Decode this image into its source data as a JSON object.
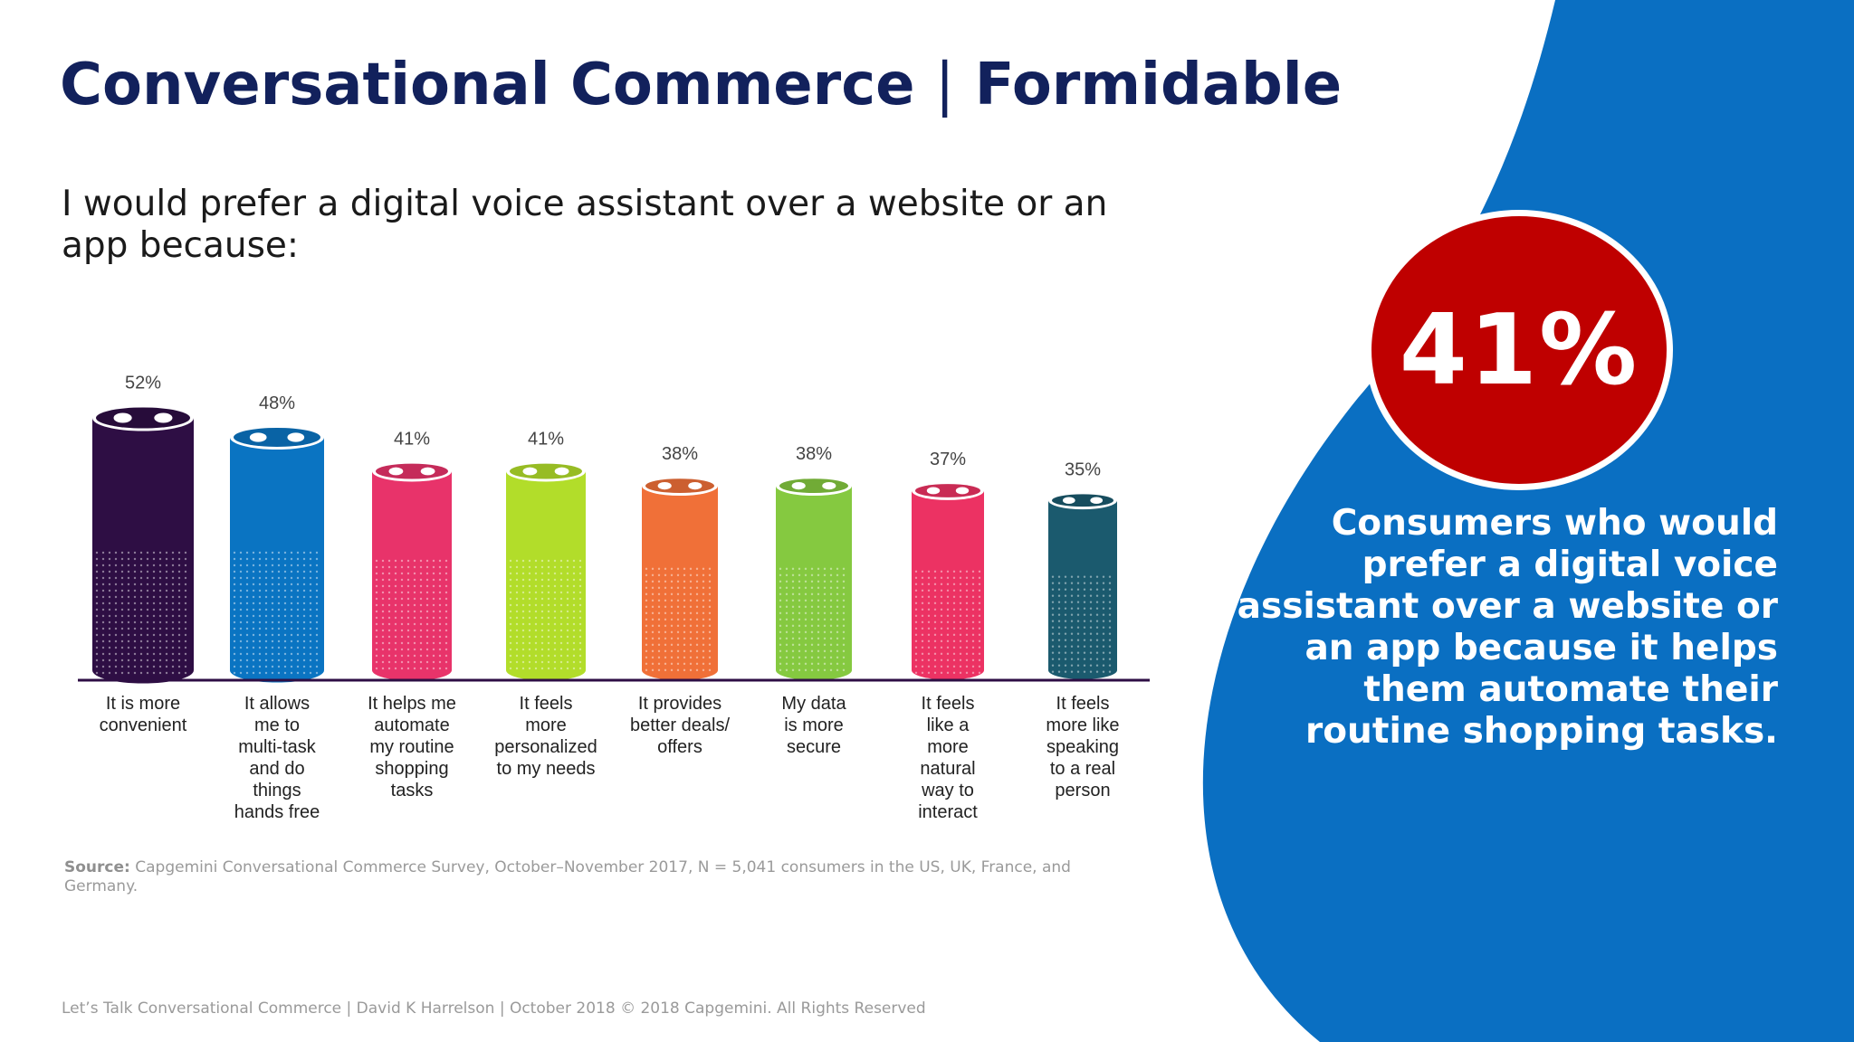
{
  "slide": {
    "title_bold": "Conversational Commerce",
    "title_separator": "|",
    "title_light": "Formidable",
    "question": "I would prefer a digital voice assistant over a website or an app because:"
  },
  "chart_data": {
    "type": "bar",
    "categories": [
      "It is more convenient",
      "It allows me to multi-task and do things hands free",
      "It helps me automate my routine shopping tasks",
      "It feels more personalized to my needs",
      "It provides better deals/ offers",
      "My data is more secure",
      "It feels like a more natural way to interact",
      "It feels more like speaking to a real person"
    ],
    "category_lines": [
      [
        "It is more",
        "convenient"
      ],
      [
        "It allows",
        "me to",
        "multi-task",
        "and do",
        "things",
        "hands free"
      ],
      [
        "It helps me",
        "automate",
        "my routine",
        "shopping",
        "tasks"
      ],
      [
        "It feels",
        "more",
        "personalized",
        "to my needs"
      ],
      [
        "It provides",
        "better deals/",
        "offers"
      ],
      [
        "My data",
        "is more",
        "secure"
      ],
      [
        "It feels",
        "like a",
        "more",
        "natural",
        "way to",
        "interact"
      ],
      [
        "It feels",
        "more like",
        "speaking",
        "to a real",
        "person"
      ]
    ],
    "values": [
      52,
      48,
      41,
      41,
      38,
      38,
      37,
      35
    ],
    "value_labels": [
      "52%",
      "48%",
      "41%",
      "41%",
      "38%",
      "38%",
      "37%",
      "35%"
    ],
    "colors": [
      "#2e0e44",
      "#0a74c2",
      "#e8336a",
      "#b2dd2a",
      "#f07038",
      "#85c940",
      "#ec3263",
      "#1b5a6e"
    ],
    "unit": "%",
    "grid": false,
    "legend": "none",
    "ylim": [
      0,
      52
    ]
  },
  "source": {
    "label": "Source:",
    "text": "Capgemini Conversational Commerce Survey, October–November 2017, N = 5,041 consumers in the US, UK, France, and Germany."
  },
  "footer": {
    "text": "Let’s Talk Conversational Commerce | David K Harrelson | October 2018  © 2018 Capgemini. All Rights Reserved"
  },
  "highlight": {
    "value": "41%",
    "text": "Consumers who would prefer a digital voice assistant over a website or an app because it helps them automate their routine shopping tasks."
  },
  "colors": {
    "title": "#12215c",
    "accent_blue": "#0a6fc2",
    "badge_red": "#bf0000"
  }
}
